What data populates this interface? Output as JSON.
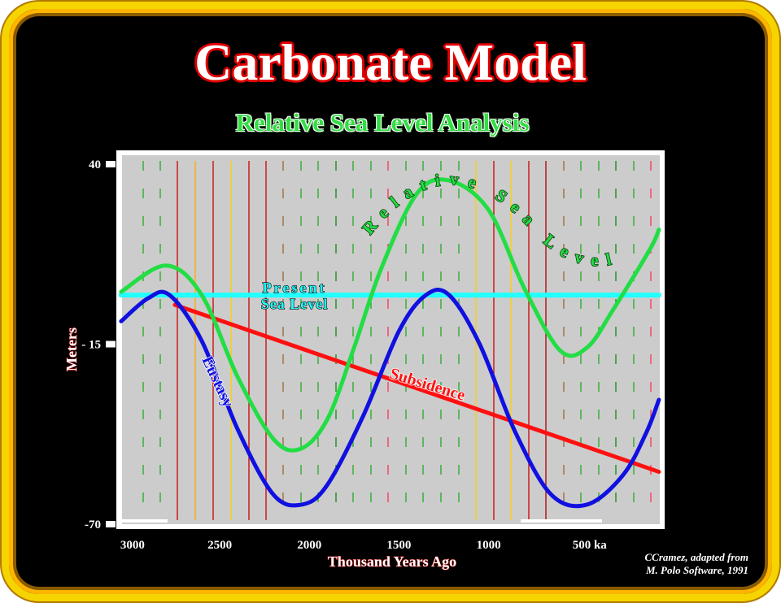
{
  "title": "Carbonate Model",
  "subtitle": "Relative Sea Level Analysis",
  "credit": {
    "line1": "CCramez, adapted  from",
    "line2": "M. Polo Software, 1991"
  },
  "colors": {
    "eustasy": "#1010e0",
    "relative": "#22dd44",
    "subsidence": "#ff1010",
    "present": "#22ffff",
    "frame": "#f5d400",
    "panel": "#cccccc"
  },
  "chart_data": {
    "type": "line",
    "xlabel": "Thousand Years Ago",
    "ylabel": "Meters",
    "xlim": [
      3000,
      0
    ],
    "ylim": [
      -70,
      40
    ],
    "x_ticks": [
      {
        "value": 3000,
        "label": "3000"
      },
      {
        "value": 2500,
        "label": "2500"
      },
      {
        "value": 2000,
        "label": "2000"
      },
      {
        "value": 1500,
        "label": "1500"
      },
      {
        "value": 1000,
        "label": "1000"
      },
      {
        "value": 500,
        "label": "500 ka"
      }
    ],
    "y_ticks": [
      {
        "value": 40,
        "label": "40"
      },
      {
        "value": -15,
        "label": "- 15"
      },
      {
        "value": -70,
        "label": "-70"
      }
    ],
    "series": [
      {
        "name": "Relative Sea Level",
        "color": "#22dd44",
        "x": [
          3050,
          2800,
          2600,
          2400,
          2200,
          2050,
          1900,
          1750,
          1600,
          1400,
          1220,
          1000,
          800,
          600,
          450,
          300,
          100,
          50
        ],
        "y": [
          1,
          9,
          0,
          -25,
          -44,
          -47,
          -38,
          -16,
          8,
          31,
          35,
          26,
          2,
          -17,
          -16,
          -4,
          14,
          20
        ]
      },
      {
        "name": "Eustasy",
        "color": "#1010e0",
        "x": [
          3050,
          2900,
          2780,
          2600,
          2400,
          2200,
          2040,
          1900,
          1700,
          1500,
          1350,
          1220,
          1050,
          850,
          650,
          450,
          250,
          120,
          50
        ],
        "y": [
          -8,
          -1,
          0,
          -14,
          -41,
          -61,
          -64,
          -58,
          -37,
          -11,
          0,
          0,
          -15,
          -42,
          -61,
          -64,
          -55,
          -42,
          -32
        ]
      },
      {
        "name": "Subsidence",
        "color": "#ff1010",
        "x": [
          2750,
          50
        ],
        "y": [
          -3,
          -54
        ]
      },
      {
        "name": "Present Sea Level",
        "color": "#22ffff",
        "x": [
          3050,
          50
        ],
        "y": [
          0,
          0
        ]
      }
    ],
    "annotations": {
      "present": [
        "Present",
        "Sea Level"
      ],
      "subsidence": "Subsidence",
      "eustasy": "Eustasy",
      "relative": "Relative Sea Level"
    },
    "grid": true
  }
}
